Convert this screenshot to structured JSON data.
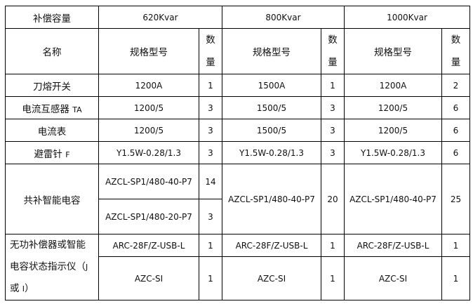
{
  "header": {
    "capacity_label": "补偿容量",
    "capacities": [
      "620Kvar",
      "800Kvar",
      "1000Kvar"
    ],
    "name_label": "名称",
    "model_label": "规格型号",
    "qty_label_1": "数",
    "qty_label_2": "量"
  },
  "rows": [
    {
      "name": "刀熔开关",
      "suffix": "",
      "c620": {
        "model": "1200A",
        "qty": "1"
      },
      "c800": {
        "model": "1500A",
        "qty": "1"
      },
      "c1000": {
        "model": "1200A",
        "qty": "2"
      }
    },
    {
      "name": "电流互感器",
      "suffix": "TA",
      "c620": {
        "model": "1200/5",
        "qty": "3"
      },
      "c800": {
        "model": "1500/5",
        "qty": "3"
      },
      "c1000": {
        "model": "1200/5",
        "qty": "6"
      }
    },
    {
      "name": "电流表",
      "suffix": "",
      "c620": {
        "model": "1200/5",
        "qty": "3"
      },
      "c800": {
        "model": "1500/5",
        "qty": "3"
      },
      "c1000": {
        "model": "1200/5",
        "qty": "6"
      }
    },
    {
      "name": "避雷针",
      "suffix": "F",
      "c620": {
        "model": "Y1.5W-0.28/1.3",
        "qty": "3"
      },
      "c800": {
        "model": "Y1.5W-0.28/1.3",
        "qty": "3"
      },
      "c1000": {
        "model": "Y1.5W-0.28/1.3",
        "qty": "6"
      }
    }
  ],
  "capacitor": {
    "name": "共补智能电容",
    "c620": [
      {
        "model": "AZCL-SP1/480-40-P7",
        "qty": "14"
      },
      {
        "model": "AZCL-SP1/480-20-P7",
        "qty": "3"
      }
    ],
    "c800": {
      "model": "AZCL-SP1/480-40-P7",
      "qty": "20"
    },
    "c1000": {
      "model": "AZCL-SP1/480-40-P7",
      "qty": "25"
    }
  },
  "controller": {
    "name_line1": "无功补偿器或智能",
    "name_line2": "电容状态指示仪（",
    "name_j": "J",
    "name_line3": "或",
    "name_i": "I",
    "name_close": "）",
    "rows": [
      {
        "c620": {
          "model": "ARC-28F/Z-USB-L",
          "qty": "1"
        },
        "c800": {
          "model": "ARC-28F/Z-USB-L",
          "qty": "1"
        },
        "c1000": {
          "model": "ARC-28F/Z-USB-L",
          "qty": "1"
        }
      },
      {
        "c620": {
          "model": "AZC-SI",
          "qty": "1"
        },
        "c800": {
          "model": "AZC-SI",
          "qty": "1"
        },
        "c1000": {
          "model": "AZC-SI",
          "qty": "1"
        }
      }
    ]
  }
}
